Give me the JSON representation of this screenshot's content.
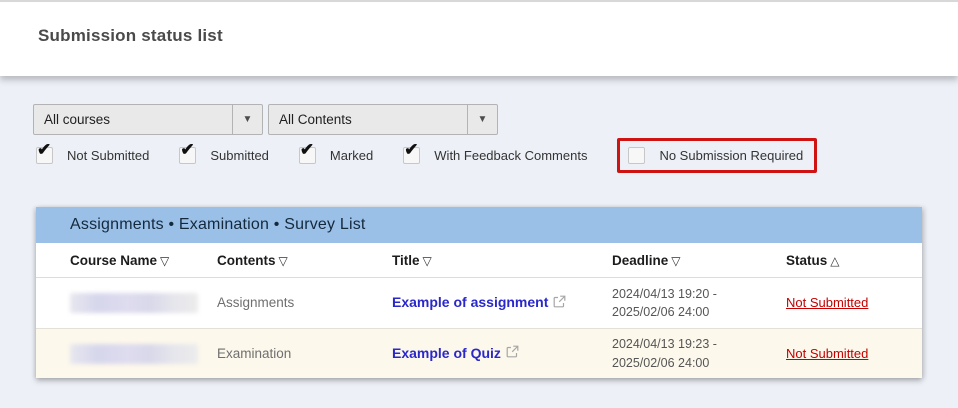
{
  "page": {
    "title": "Submission status list"
  },
  "filters": {
    "course_select": {
      "value": "All courses"
    },
    "contents_select": {
      "value": "All Contents"
    },
    "checkboxes": [
      {
        "label": "Not Submitted",
        "checked": true,
        "highlighted": false
      },
      {
        "label": "Submitted",
        "checked": true,
        "highlighted": false
      },
      {
        "label": "Marked",
        "checked": true,
        "highlighted": false
      },
      {
        "label": "With Feedback Comments",
        "checked": true,
        "highlighted": false
      },
      {
        "label": "No Submission Required",
        "checked": false,
        "highlighted": true
      }
    ]
  },
  "table": {
    "title": "Assignments • Examination • Survey List",
    "columns": [
      {
        "label": "Course Name",
        "sort": "▽"
      },
      {
        "label": "Contents",
        "sort": "▽"
      },
      {
        "label": "Title",
        "sort": "▽"
      },
      {
        "label": "Deadline",
        "sort": "▽"
      },
      {
        "label": "Status",
        "sort": "△"
      }
    ],
    "rows": [
      {
        "course_name_redacted": true,
        "contents": "Assignments",
        "title": "Example of assignment",
        "deadline": "2024/04/13 19:20 - 2025/02/06 24:00",
        "status": "Not Submitted"
      },
      {
        "course_name_redacted": true,
        "contents": "Examination",
        "title": "Example of Quiz",
        "deadline": "2024/04/13 19:23 - 2025/02/06 24:00",
        "status": "Not Submitted"
      }
    ]
  },
  "icons": {
    "checkmark": "✔",
    "dropdown_arrow": "▼",
    "external_link": "external-link-icon"
  },
  "colors": {
    "table_header_blue": "#9ac0e8",
    "link_blue": "#2a28c9",
    "status_red": "#c40000",
    "highlight_red": "#cf1212",
    "row_alt_cream": "#fdf8ec",
    "page_background": "#edf1f7"
  }
}
